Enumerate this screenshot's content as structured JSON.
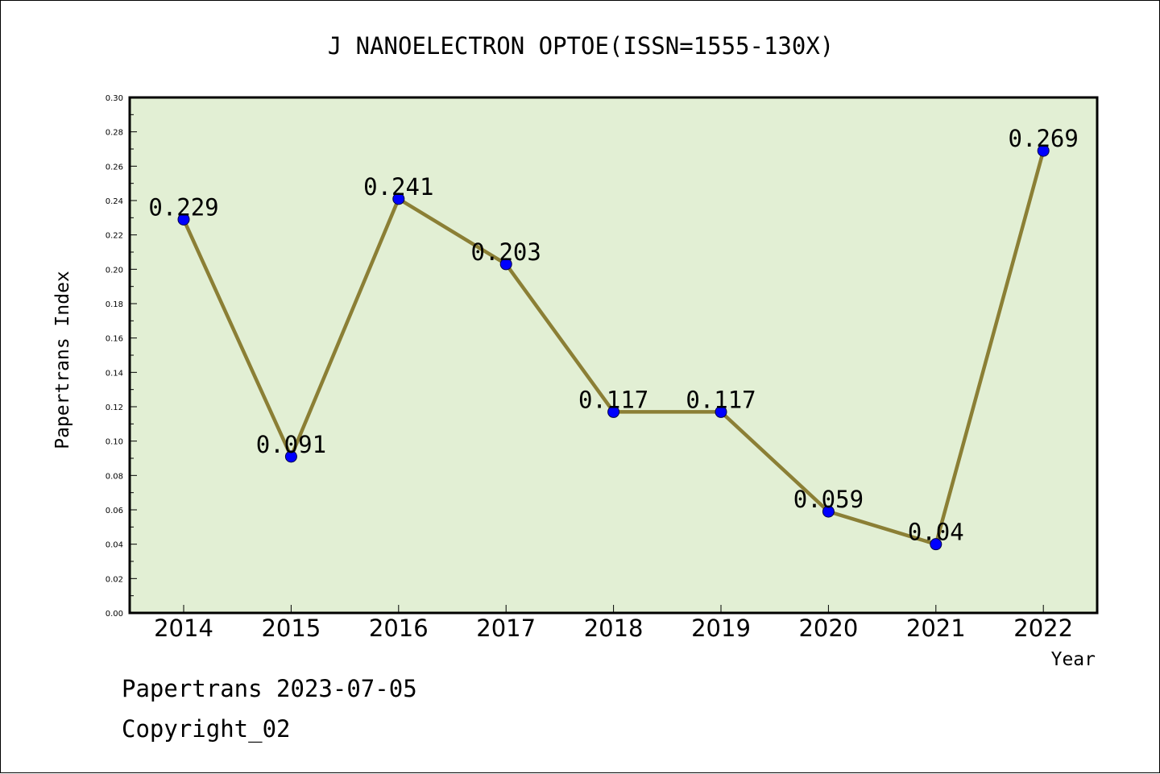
{
  "chart_data": {
    "type": "line",
    "title": "J NANOELECTRON OPTOE(ISSN=1555-130X)",
    "xlabel": "Year",
    "ylabel": "Papertrans Index",
    "categories": [
      "2014",
      "2015",
      "2016",
      "2017",
      "2018",
      "2019",
      "2020",
      "2021",
      "2022"
    ],
    "series": [
      {
        "values": [
          0.229,
          0.091,
          0.241,
          0.203,
          0.117,
          0.117,
          0.059,
          0.04,
          0.269
        ],
        "labels": [
          "0.229",
          "0.091",
          "0.241",
          "0.203",
          "0.117",
          "0.117",
          "0.059",
          "0.04",
          "0.269"
        ]
      }
    ],
    "ylim": [
      0.0,
      0.3
    ],
    "yticks": [
      "0.00",
      "0.02",
      "0.04",
      "0.06",
      "0.08",
      "0.10",
      "0.12",
      "0.14",
      "0.16",
      "0.18",
      "0.20",
      "0.22",
      "0.24",
      "0.26",
      "0.28",
      "0.30"
    ],
    "grid": false,
    "colors": {
      "plot_background": "#e2efd4",
      "line": "#8b7f35",
      "marker": "#0000ff"
    }
  },
  "footer": {
    "date_line": "Papertrans 2023-07-05",
    "copyright": "Copyright_02"
  }
}
